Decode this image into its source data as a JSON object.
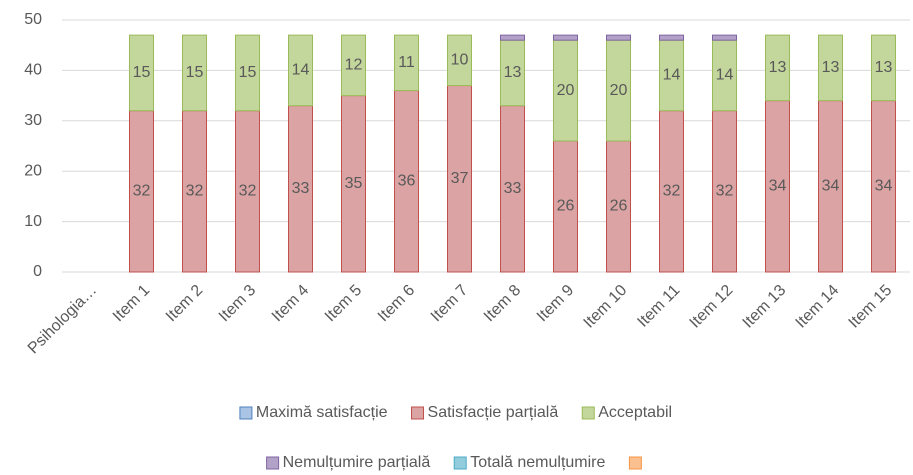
{
  "chart_data": {
    "type": "stacked_bar",
    "categories": [
      "Psihologia…",
      "Item 1",
      "Item 2",
      "Item 3",
      "Item 4",
      "Item 5",
      "Item 6",
      "Item 7",
      "Item 8",
      "Item 9",
      "Item 10",
      "Item 11",
      "Item 12",
      "Item 13",
      "Item 14",
      "Item 15"
    ],
    "series": [
      {
        "name": "Maximă satisfacție",
        "color": "#4f81bd",
        "fill": "#a9c4e4",
        "data_labels": false,
        "values": [
          null,
          0,
          0,
          0,
          0,
          0,
          0,
          0,
          0,
          0,
          0,
          0,
          0,
          0,
          0,
          0
        ]
      },
      {
        "name": "Satisfacție parțială",
        "color": "#c0504d",
        "fill": "#dba3a3",
        "data_labels": true,
        "values": [
          null,
          32,
          32,
          32,
          33,
          35,
          36,
          37,
          33,
          26,
          26,
          32,
          32,
          34,
          34,
          34
        ]
      },
      {
        "name": "Acceptabil",
        "color": "#9bbb59",
        "fill": "#c3d69b",
        "data_labels": true,
        "values": [
          null,
          15,
          15,
          15,
          14,
          12,
          11,
          10,
          13,
          20,
          20,
          14,
          14,
          13,
          13,
          13
        ]
      },
      {
        "name": "Nemulțumire parțială",
        "color": "#8064a2",
        "fill": "#b3a2c7",
        "data_labels": false,
        "values": [
          null,
          0,
          0,
          0,
          0,
          0,
          0,
          0,
          1,
          1,
          1,
          1,
          1,
          0,
          0,
          0
        ]
      },
      {
        "name": "Totală nemulțumire",
        "color": "#4bacc6",
        "fill": "#93cddd",
        "data_labels": false,
        "values": [
          null,
          0,
          0,
          0,
          0,
          0,
          0,
          0,
          0,
          0,
          0,
          0,
          0,
          0,
          0,
          0
        ]
      },
      {
        "color": "#f79646",
        "fill": "#fac090",
        "data_labels": false,
        "values": [
          null,
          0,
          0,
          0,
          0,
          0,
          0,
          0,
          0,
          0,
          0,
          0,
          0,
          0,
          0,
          0
        ]
      }
    ],
    "ylim": [
      0,
      50
    ],
    "yticks": [
      0,
      10,
      20,
      30,
      40,
      50
    ],
    "grid": true,
    "legend": "bottom"
  }
}
